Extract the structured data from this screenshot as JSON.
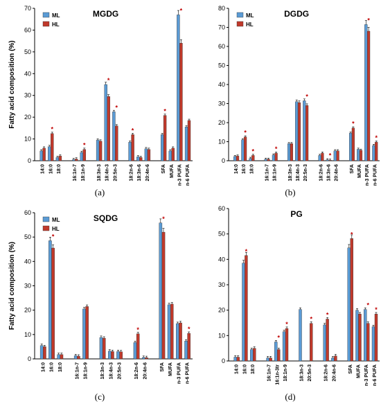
{
  "colors": {
    "ML": "#5b9bd5",
    "HL": "#c0392b"
  },
  "chart_data": [
    {
      "type": "bar",
      "panel": "(a)",
      "title": "MGDG",
      "ylabel": "Fatty acid composition (%)",
      "ylim": [
        0,
        70
      ],
      "ticks": [
        0,
        10,
        20,
        30,
        40,
        50,
        60,
        70
      ],
      "categories": [
        "14:0",
        "16:0",
        "18:0",
        "16:1n-7",
        "18:1n-9",
        "18:3n-3",
        "18:4n-3",
        "20:5n-3",
        "18:2n-6",
        "18:3n-6",
        "20:4n-6",
        "SFA",
        "MUFA",
        "n-3 PUFA",
        "n-6 PUFA"
      ],
      "groups": [
        3,
        2,
        3,
        3,
        4
      ],
      "series": [
        {
          "name": "ML",
          "values": [
            4.5,
            6.5,
            1.5,
            0.5,
            3.8,
            9.5,
            35,
            22.5,
            8.5,
            1.8,
            5.5,
            12,
            4.5,
            67,
            15.5
          ]
        },
        {
          "name": "HL",
          "values": [
            5.8,
            12.5,
            2.2,
            0.8,
            5.2,
            9,
            29.5,
            16,
            12,
            1.5,
            5.2,
            20.8,
            5.8,
            54,
            18.5
          ]
        }
      ],
      "significant": [
        1,
        4,
        6,
        7,
        8,
        11,
        13
      ],
      "legend": [
        "ML",
        "HL"
      ]
    },
    {
      "type": "bar",
      "panel": "(b)",
      "title": "DGDG",
      "ylabel": "",
      "ylim": [
        0,
        80
      ],
      "ticks": [
        0,
        10,
        20,
        30,
        40,
        50,
        60,
        70,
        80
      ],
      "categories": [
        "14:0",
        "16:0",
        "18:0",
        "16:1n-7",
        "18:1n-9",
        "18:3n-3",
        "18:4n-3",
        "20:5n-3",
        "18:2n-6",
        "18:3n-6",
        "20:4n-6",
        "SFA",
        "MUFA",
        "n-3 PUFA",
        "n-6 PUFA"
      ],
      "groups": [
        3,
        2,
        3,
        3,
        4
      ],
      "series": [
        {
          "name": "ML",
          "values": [
            2.2,
            11,
            1.2,
            0.8,
            3,
            9,
            31,
            31.5,
            2.8,
            0.5,
            5.2,
            14.5,
            6,
            71.5,
            8
          ]
        },
        {
          "name": "HL",
          "values": [
            2.5,
            12.5,
            2.8,
            0.8,
            4,
            9,
            30.5,
            29,
            4,
            0.3,
            5.2,
            17.2,
            5.5,
            68,
            9.8
          ]
        }
      ],
      "significant": [
        1,
        2,
        4,
        7,
        9,
        11,
        13,
        14
      ],
      "legend": [
        "ML",
        "HL"
      ]
    },
    {
      "type": "bar",
      "panel": "(c)",
      "title": "SQDG",
      "ylabel": "Fatty acid composition (%)",
      "ylim": [
        0,
        60
      ],
      "ticks": [
        0,
        10,
        20,
        30,
        40,
        50,
        60
      ],
      "categories": [
        "14:0",
        "16:0",
        "18:0",
        "16:1n-7",
        "18:1n-9",
        "18:3n-3",
        "18:4n-3",
        "20:5n-3",
        "18:2n-6",
        "20:4n-6",
        "SFA",
        "MUFA",
        "n-3 PUFA",
        "n-6 PUFA"
      ],
      "groups": [
        3,
        2,
        3,
        2,
        4
      ],
      "series": [
        {
          "name": "ML",
          "values": [
            5.5,
            48.5,
            1.8,
            1.3,
            20.5,
            8.8,
            3.2,
            3,
            6.7,
            0.6,
            55.8,
            22.2,
            14.5,
            7.3
          ]
        },
        {
          "name": "HL",
          "values": [
            5,
            45.5,
            1.8,
            1.1,
            21.5,
            8.5,
            3,
            2.9,
            10.3,
            0.5,
            52,
            22.5,
            14.8,
            10.5
          ]
        }
      ],
      "significant": [
        1,
        8,
        10,
        13
      ],
      "legend": [
        "ML",
        "HL"
      ]
    },
    {
      "type": "bar",
      "panel": "(d)",
      "title": "PG",
      "ylabel": "",
      "ylim": [
        0,
        60
      ],
      "ticks": [
        0,
        10,
        20,
        30,
        40,
        50,
        60
      ],
      "categories": [
        "14:0",
        "16:0",
        "18:0",
        "16:1n-7",
        "16:1n-3tr",
        "18:1n-9",
        "18:3n-3",
        "20:5n-3",
        "18:2n-6",
        "20:4n-6",
        "SFA",
        "MUFA",
        "n-3 PUFA",
        "n-6 PUFA"
      ],
      "groups": [
        3,
        3,
        2,
        2,
        4
      ],
      "series": [
        {
          "name": "ML",
          "values": [
            1.5,
            38.5,
            4.5,
            1.2,
            7.5,
            11.5,
            20.3,
            0,
            14.2,
            1.2,
            44.5,
            20,
            20.3,
            13.5
          ]
        },
        {
          "name": "HL",
          "values": [
            1.5,
            41.5,
            5,
            1.2,
            4.5,
            12.8,
            0,
            14.8,
            16.5,
            2,
            48.2,
            18.5,
            14.8,
            18.5
          ]
        }
      ],
      "significant": [
        1,
        4,
        5,
        7,
        8,
        10,
        12,
        13
      ],
      "legend": []
    }
  ]
}
